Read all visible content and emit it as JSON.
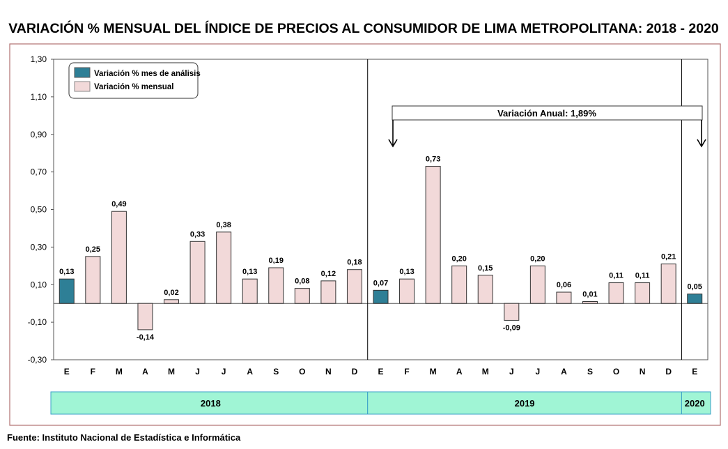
{
  "chart_data": {
    "type": "bar",
    "title": "VARIACIÓN % MENSUAL DEL ÍNDICE DE PRECIOS AL CONSUMIDOR DE LIMA METROPOLITANA: 2018 - 2020",
    "categories": [
      "E",
      "F",
      "M",
      "A",
      "M",
      "J",
      "J",
      "A",
      "S",
      "O",
      "N",
      "D",
      "E",
      "F",
      "M",
      "A",
      "M",
      "J",
      "J",
      "A",
      "S",
      "O",
      "N",
      "D",
      "E"
    ],
    "values": [
      0.13,
      0.25,
      0.49,
      -0.14,
      0.02,
      0.33,
      0.38,
      0.13,
      0.19,
      0.08,
      0.12,
      0.18,
      0.07,
      0.13,
      0.73,
      0.2,
      0.15,
      -0.09,
      0.2,
      0.06,
      0.01,
      0.11,
      0.11,
      0.21,
      0.05
    ],
    "value_labels": [
      "0,13",
      "0,25",
      "0,49",
      "-0,14",
      "0,02",
      "0,33",
      "0,38",
      "0,13",
      "0,19",
      "0,08",
      "0,12",
      "0,18",
      "0,07",
      "0,13",
      "0,73",
      "0,20",
      "0,15",
      "-0,09",
      "0,20",
      "0,06",
      "0,01",
      "0,11",
      "0,11",
      "0,21",
      "0,05"
    ],
    "highlight": [
      true,
      false,
      false,
      false,
      false,
      false,
      false,
      false,
      false,
      false,
      false,
      false,
      true,
      false,
      false,
      false,
      false,
      false,
      false,
      false,
      false,
      false,
      false,
      false,
      true
    ],
    "ylim": [
      -0.3,
      1.3
    ],
    "yticks": [
      1.3,
      1.1,
      0.9,
      0.7,
      0.5,
      0.3,
      0.1,
      -0.1,
      -0.3
    ],
    "ytick_labels": [
      "1,30",
      "1,10",
      "0,90",
      "0,70",
      "0,50",
      "0,30",
      "0,10",
      "-0,10",
      "-0,30"
    ],
    "years": [
      {
        "label": "2018",
        "months": 12
      },
      {
        "label": "2019",
        "months": 12
      },
      {
        "label": "2020",
        "months": 1
      }
    ],
    "legend": {
      "placement": "top-left",
      "items": [
        {
          "label": "Variación % mes de análisis",
          "color": "#2e7f96"
        },
        {
          "label": "Variación % mensual",
          "color": "#f2d9d9"
        }
      ]
    },
    "annotation": "Variación Anual: 1,89%",
    "source": "Fuente: Instituto Nacional de Estadística e Informática",
    "colors": {
      "highlight": "#2e7f96",
      "normal": "#f2d9d9",
      "year_band": "#a0f5d5",
      "frame": "#b07070"
    }
  }
}
